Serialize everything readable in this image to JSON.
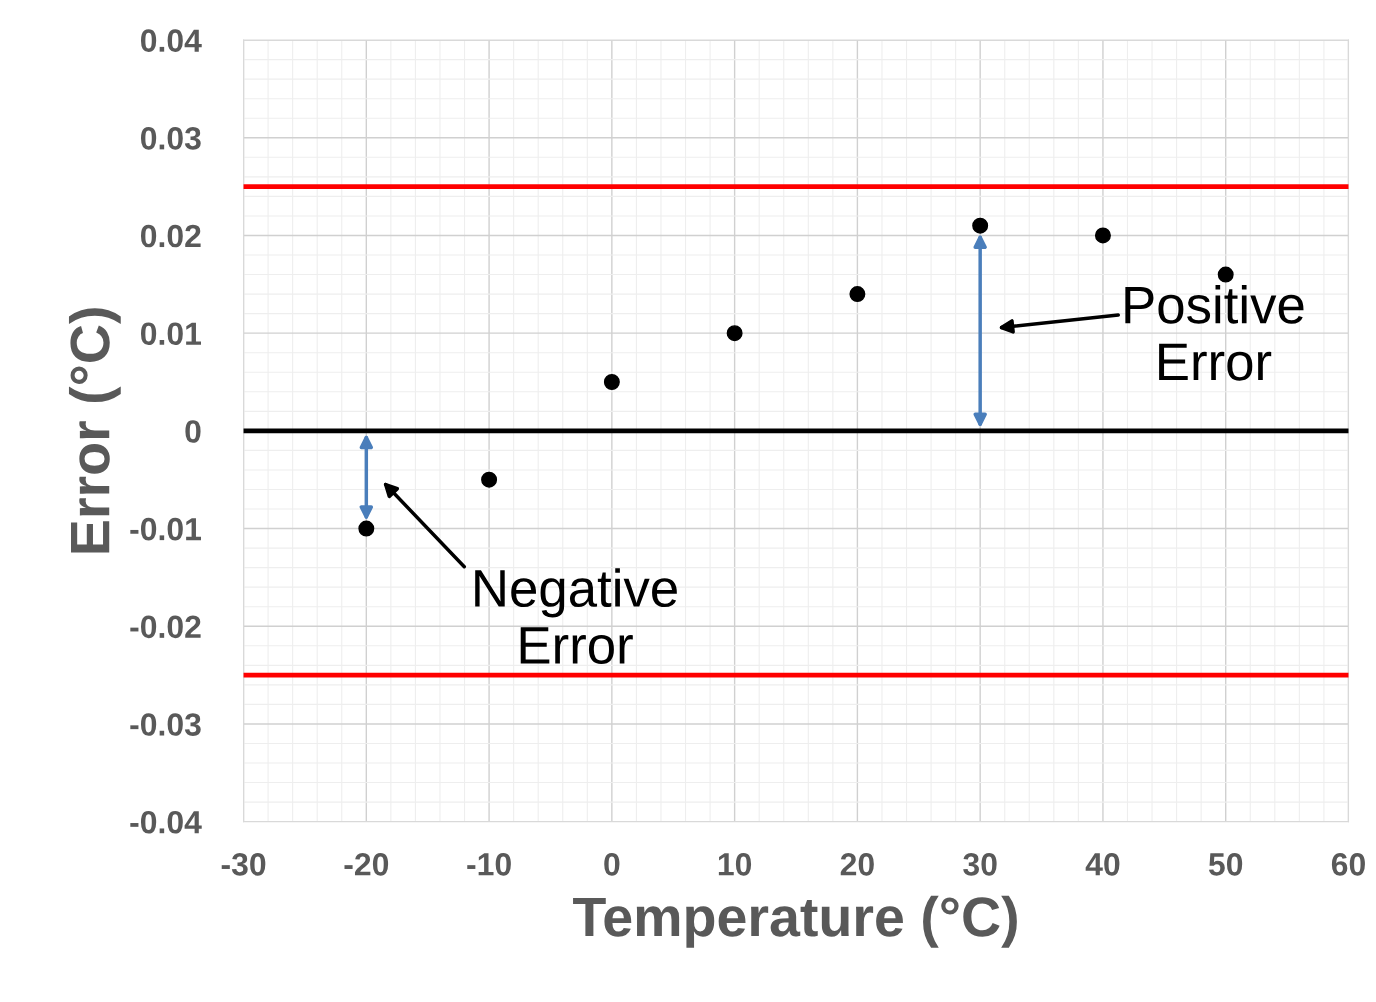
{
  "chart_data": {
    "type": "scatter",
    "xlabel": "Temperature (°C)",
    "ylabel": "Error (°C)",
    "series": [
      {
        "color": "#000000",
        "x": [
          -20,
          -10,
          0,
          10,
          20,
          30,
          40,
          50
        ],
        "values": [
          -0.01,
          -0.005,
          0.005,
          0.01,
          0.014,
          0.021,
          0.02,
          0.016
        ]
      }
    ],
    "xlim": [
      -30,
      60
    ],
    "xticks": [
      -30,
      -20,
      -10,
      0,
      10,
      20,
      30,
      40,
      50,
      60
    ],
    "ylim": [
      -0.04,
      0.04
    ],
    "yticks": [
      -0.04,
      -0.03,
      -0.02,
      -0.01,
      0,
      0.01,
      0.02,
      0.03,
      0.04
    ],
    "ref_lines": [
      {
        "axis": "y",
        "value": 0.025,
        "color": "#ff0000"
      },
      {
        "axis": "y",
        "value": -0.025,
        "color": "#ff0000"
      },
      {
        "axis": "y",
        "value": 0,
        "color": "#000000"
      }
    ],
    "annotations": [
      {
        "text": "Negative\nError",
        "x": -20,
        "y": -0.01
      },
      {
        "text": "Positive\nError",
        "x": 30,
        "y": 0.021
      }
    ],
    "grid": true,
    "marker": "circle"
  }
}
